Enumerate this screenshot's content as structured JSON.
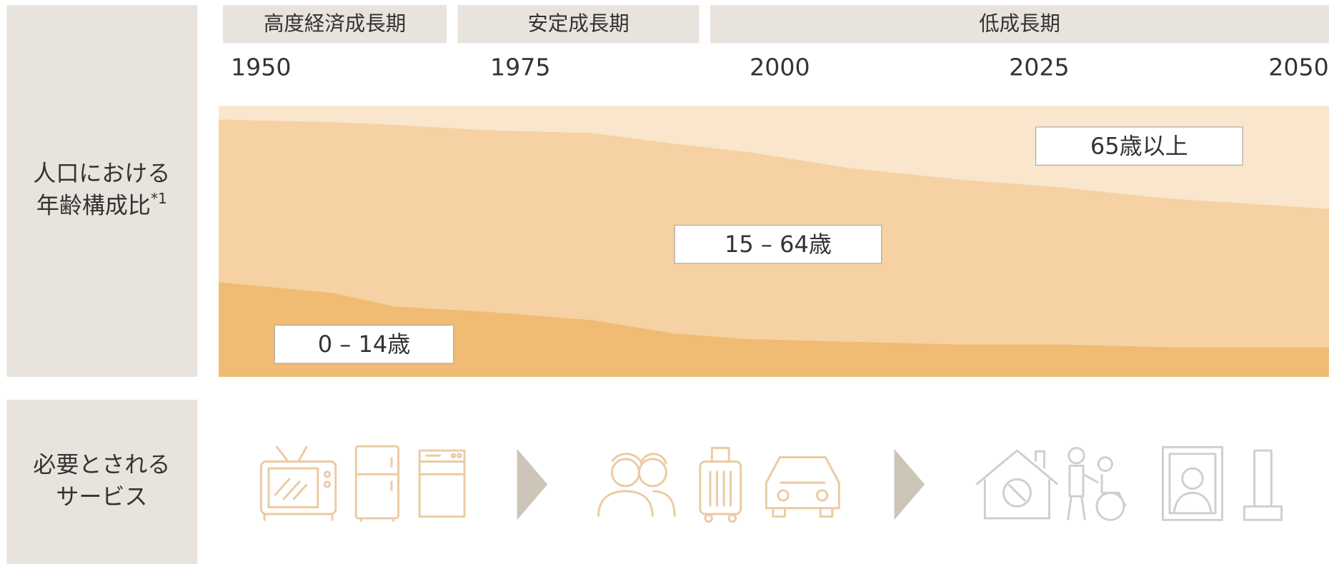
{
  "chart_data": {
    "type": "area",
    "stacked": true,
    "periods": [
      "高度経済成長期",
      "安定成長期",
      "低成長期"
    ],
    "row_labels": [
      [
        "人口における",
        "年齢構成比"
      ],
      [
        "必要とされる",
        "サービス"
      ]
    ],
    "footnote_mark": "*1",
    "x": [
      1949,
      1960,
      1966,
      1975,
      1985,
      1993,
      2000,
      2010,
      2020,
      2030,
      2040,
      2056
    ],
    "xlim": [
      1949,
      2056
    ],
    "xticks": [
      1950,
      1975,
      2000,
      2025,
      2050
    ],
    "ylim": [
      0,
      100
    ],
    "series": [
      {
        "name": "0 – 14歳",
        "color": "#f0bb73",
        "values": [
          35,
          31,
          26,
          24,
          21,
          16,
          14,
          13,
          12,
          12,
          11,
          11
        ]
      },
      {
        "name": "15 – 64歳",
        "color": "#f5d1a3",
        "values": [
          60,
          63,
          67,
          67,
          69,
          70,
          69,
          64,
          61,
          58,
          55,
          51
        ]
      },
      {
        "name": "65歳以上",
        "color": "#f9e6cc",
        "values": [
          5,
          6,
          7,
          9,
          10,
          14,
          17,
          23,
          27,
          30,
          34,
          38
        ]
      }
    ]
  }
}
